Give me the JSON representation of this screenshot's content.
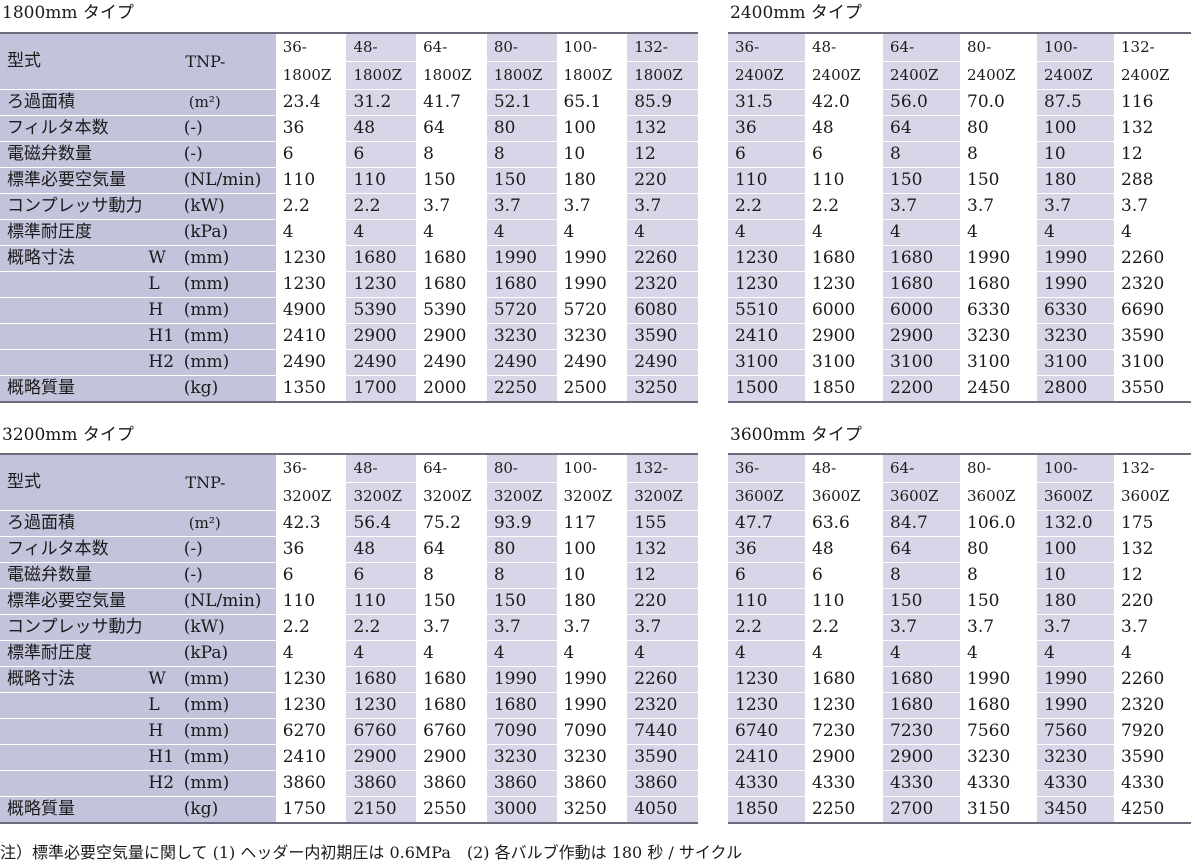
{
  "row_labels": {
    "model": "型式",
    "model_prefix": "TNP-",
    "filter_area": "ろ過面積",
    "filter_area_unit": "(m²)",
    "filter_count": "フィルタ本数",
    "filter_count_unit": "(-)",
    "valve_count": "電磁弁数量",
    "valve_count_unit": "(-)",
    "air": "標準必要空気量",
    "air_unit": "(NL/min)",
    "power": "コンプレッサ動力",
    "power_unit": "(kW)",
    "pressure": "標準耐圧度",
    "pressure_unit": "(kPa)",
    "dims": "概略寸法",
    "dim_w": "W",
    "dim_l": "L",
    "dim_h": "H",
    "dim_h1": "H1",
    "dim_h2": "H2",
    "dim_unit": "(mm)",
    "mass": "概略質量",
    "mass_unit": "(kg)"
  },
  "tables": [
    {
      "title": "1800mm タイプ",
      "models_top": [
        "36-",
        "48-",
        "64-",
        "80-",
        "100-",
        "132-"
      ],
      "models_bottom": [
        "1800Z",
        "1800Z",
        "1800Z",
        "1800Z",
        "1800Z",
        "1800Z"
      ],
      "filter_area": [
        "23.4",
        "31.2",
        "41.7",
        "52.1",
        "65.1",
        "85.9"
      ],
      "filter_count": [
        "36",
        "48",
        "64",
        "80",
        "100",
        "132"
      ],
      "valve_count": [
        "6",
        "6",
        "8",
        "8",
        "10",
        "12"
      ],
      "air": [
        "110",
        "110",
        "150",
        "150",
        "180",
        "220"
      ],
      "power": [
        "2.2",
        "2.2",
        "3.7",
        "3.7",
        "3.7",
        "3.7"
      ],
      "pressure": [
        "4",
        "4",
        "4",
        "4",
        "4",
        "4"
      ],
      "w": [
        "1230",
        "1680",
        "1680",
        "1990",
        "1990",
        "2260"
      ],
      "l": [
        "1230",
        "1230",
        "1680",
        "1680",
        "1990",
        "2320"
      ],
      "h": [
        "4900",
        "5390",
        "5390",
        "5720",
        "5720",
        "6080"
      ],
      "h1": [
        "2410",
        "2900",
        "2900",
        "3230",
        "3230",
        "3590"
      ],
      "h2": [
        "2490",
        "2490",
        "2490",
        "2490",
        "2490",
        "2490"
      ],
      "mass": [
        "1350",
        "1700",
        "2000",
        "2250",
        "2500",
        "3250"
      ]
    },
    {
      "title": "2400mm タイプ",
      "models_top": [
        "36-",
        "48-",
        "64-",
        "80-",
        "100-",
        "132-"
      ],
      "models_bottom": [
        "2400Z",
        "2400Z",
        "2400Z",
        "2400Z",
        "2400Z",
        "2400Z"
      ],
      "filter_area": [
        "31.5",
        "42.0",
        "56.0",
        "70.0",
        "87.5",
        "116"
      ],
      "filter_count": [
        "36",
        "48",
        "64",
        "80",
        "100",
        "132"
      ],
      "valve_count": [
        "6",
        "6",
        "8",
        "8",
        "10",
        "12"
      ],
      "air": [
        "110",
        "110",
        "150",
        "150",
        "180",
        "288"
      ],
      "power": [
        "2.2",
        "2.2",
        "3.7",
        "3.7",
        "3.7",
        "3.7"
      ],
      "pressure": [
        "4",
        "4",
        "4",
        "4",
        "4",
        "4"
      ],
      "w": [
        "1230",
        "1680",
        "1680",
        "1990",
        "1990",
        "2260"
      ],
      "l": [
        "1230",
        "1230",
        "1680",
        "1680",
        "1990",
        "2320"
      ],
      "h": [
        "5510",
        "6000",
        "6000",
        "6330",
        "6330",
        "6690"
      ],
      "h1": [
        "2410",
        "2900",
        "2900",
        "3230",
        "3230",
        "3590"
      ],
      "h2": [
        "3100",
        "3100",
        "3100",
        "3100",
        "3100",
        "3100"
      ],
      "mass": [
        "1500",
        "1850",
        "2200",
        "2450",
        "2800",
        "3550"
      ]
    },
    {
      "title": "3200mm タイプ",
      "models_top": [
        "36-",
        "48-",
        "64-",
        "80-",
        "100-",
        "132-"
      ],
      "models_bottom": [
        "3200Z",
        "3200Z",
        "3200Z",
        "3200Z",
        "3200Z",
        "3200Z"
      ],
      "filter_area": [
        "42.3",
        "56.4",
        "75.2",
        "93.9",
        "117",
        "155"
      ],
      "filter_count": [
        "36",
        "48",
        "64",
        "80",
        "100",
        "132"
      ],
      "valve_count": [
        "6",
        "6",
        "8",
        "8",
        "10",
        "12"
      ],
      "air": [
        "110",
        "110",
        "150",
        "150",
        "180",
        "220"
      ],
      "power": [
        "2.2",
        "2.2",
        "3.7",
        "3.7",
        "3.7",
        "3.7"
      ],
      "pressure": [
        "4",
        "4",
        "4",
        "4",
        "4",
        "4"
      ],
      "w": [
        "1230",
        "1680",
        "1680",
        "1990",
        "1990",
        "2260"
      ],
      "l": [
        "1230",
        "1230",
        "1680",
        "1680",
        "1990",
        "2320"
      ],
      "h": [
        "6270",
        "6760",
        "6760",
        "7090",
        "7090",
        "7440"
      ],
      "h1": [
        "2410",
        "2900",
        "2900",
        "3230",
        "3230",
        "3590"
      ],
      "h2": [
        "3860",
        "3860",
        "3860",
        "3860",
        "3860",
        "3860"
      ],
      "mass": [
        "1750",
        "2150",
        "2550",
        "3000",
        "3250",
        "4050"
      ]
    },
    {
      "title": "3600mm タイプ",
      "models_top": [
        "36-",
        "48-",
        "64-",
        "80-",
        "100-",
        "132-"
      ],
      "models_bottom": [
        "3600Z",
        "3600Z",
        "3600Z",
        "3600Z",
        "3600Z",
        "3600Z"
      ],
      "filter_area": [
        "47.7",
        "63.6",
        "84.7",
        "106.0",
        "132.0",
        "175"
      ],
      "filter_count": [
        "36",
        "48",
        "64",
        "80",
        "100",
        "132"
      ],
      "valve_count": [
        "6",
        "6",
        "8",
        "8",
        "10",
        "12"
      ],
      "air": [
        "110",
        "110",
        "150",
        "150",
        "180",
        "220"
      ],
      "power": [
        "2.2",
        "2.2",
        "3.7",
        "3.7",
        "3.7",
        "3.7"
      ],
      "pressure": [
        "4",
        "4",
        "4",
        "4",
        "4",
        "4"
      ],
      "w": [
        "1230",
        "1680",
        "1680",
        "1990",
        "1990",
        "2260"
      ],
      "l": [
        "1230",
        "1230",
        "1680",
        "1680",
        "1990",
        "2320"
      ],
      "h": [
        "6740",
        "7230",
        "7230",
        "7560",
        "7560",
        "7920"
      ],
      "h1": [
        "2410",
        "2900",
        "2900",
        "3230",
        "3230",
        "3590"
      ],
      "h2": [
        "4330",
        "4330",
        "4330",
        "4330",
        "4330",
        "4330"
      ],
      "mass": [
        "1850",
        "2250",
        "2700",
        "3150",
        "3450",
        "4250"
      ]
    }
  ],
  "footnote": "注）標準必要空気量に関して (1) ヘッダー内初期圧は 0.6MPa　(2) 各バルブ作動は 180 秒 / サイクル"
}
